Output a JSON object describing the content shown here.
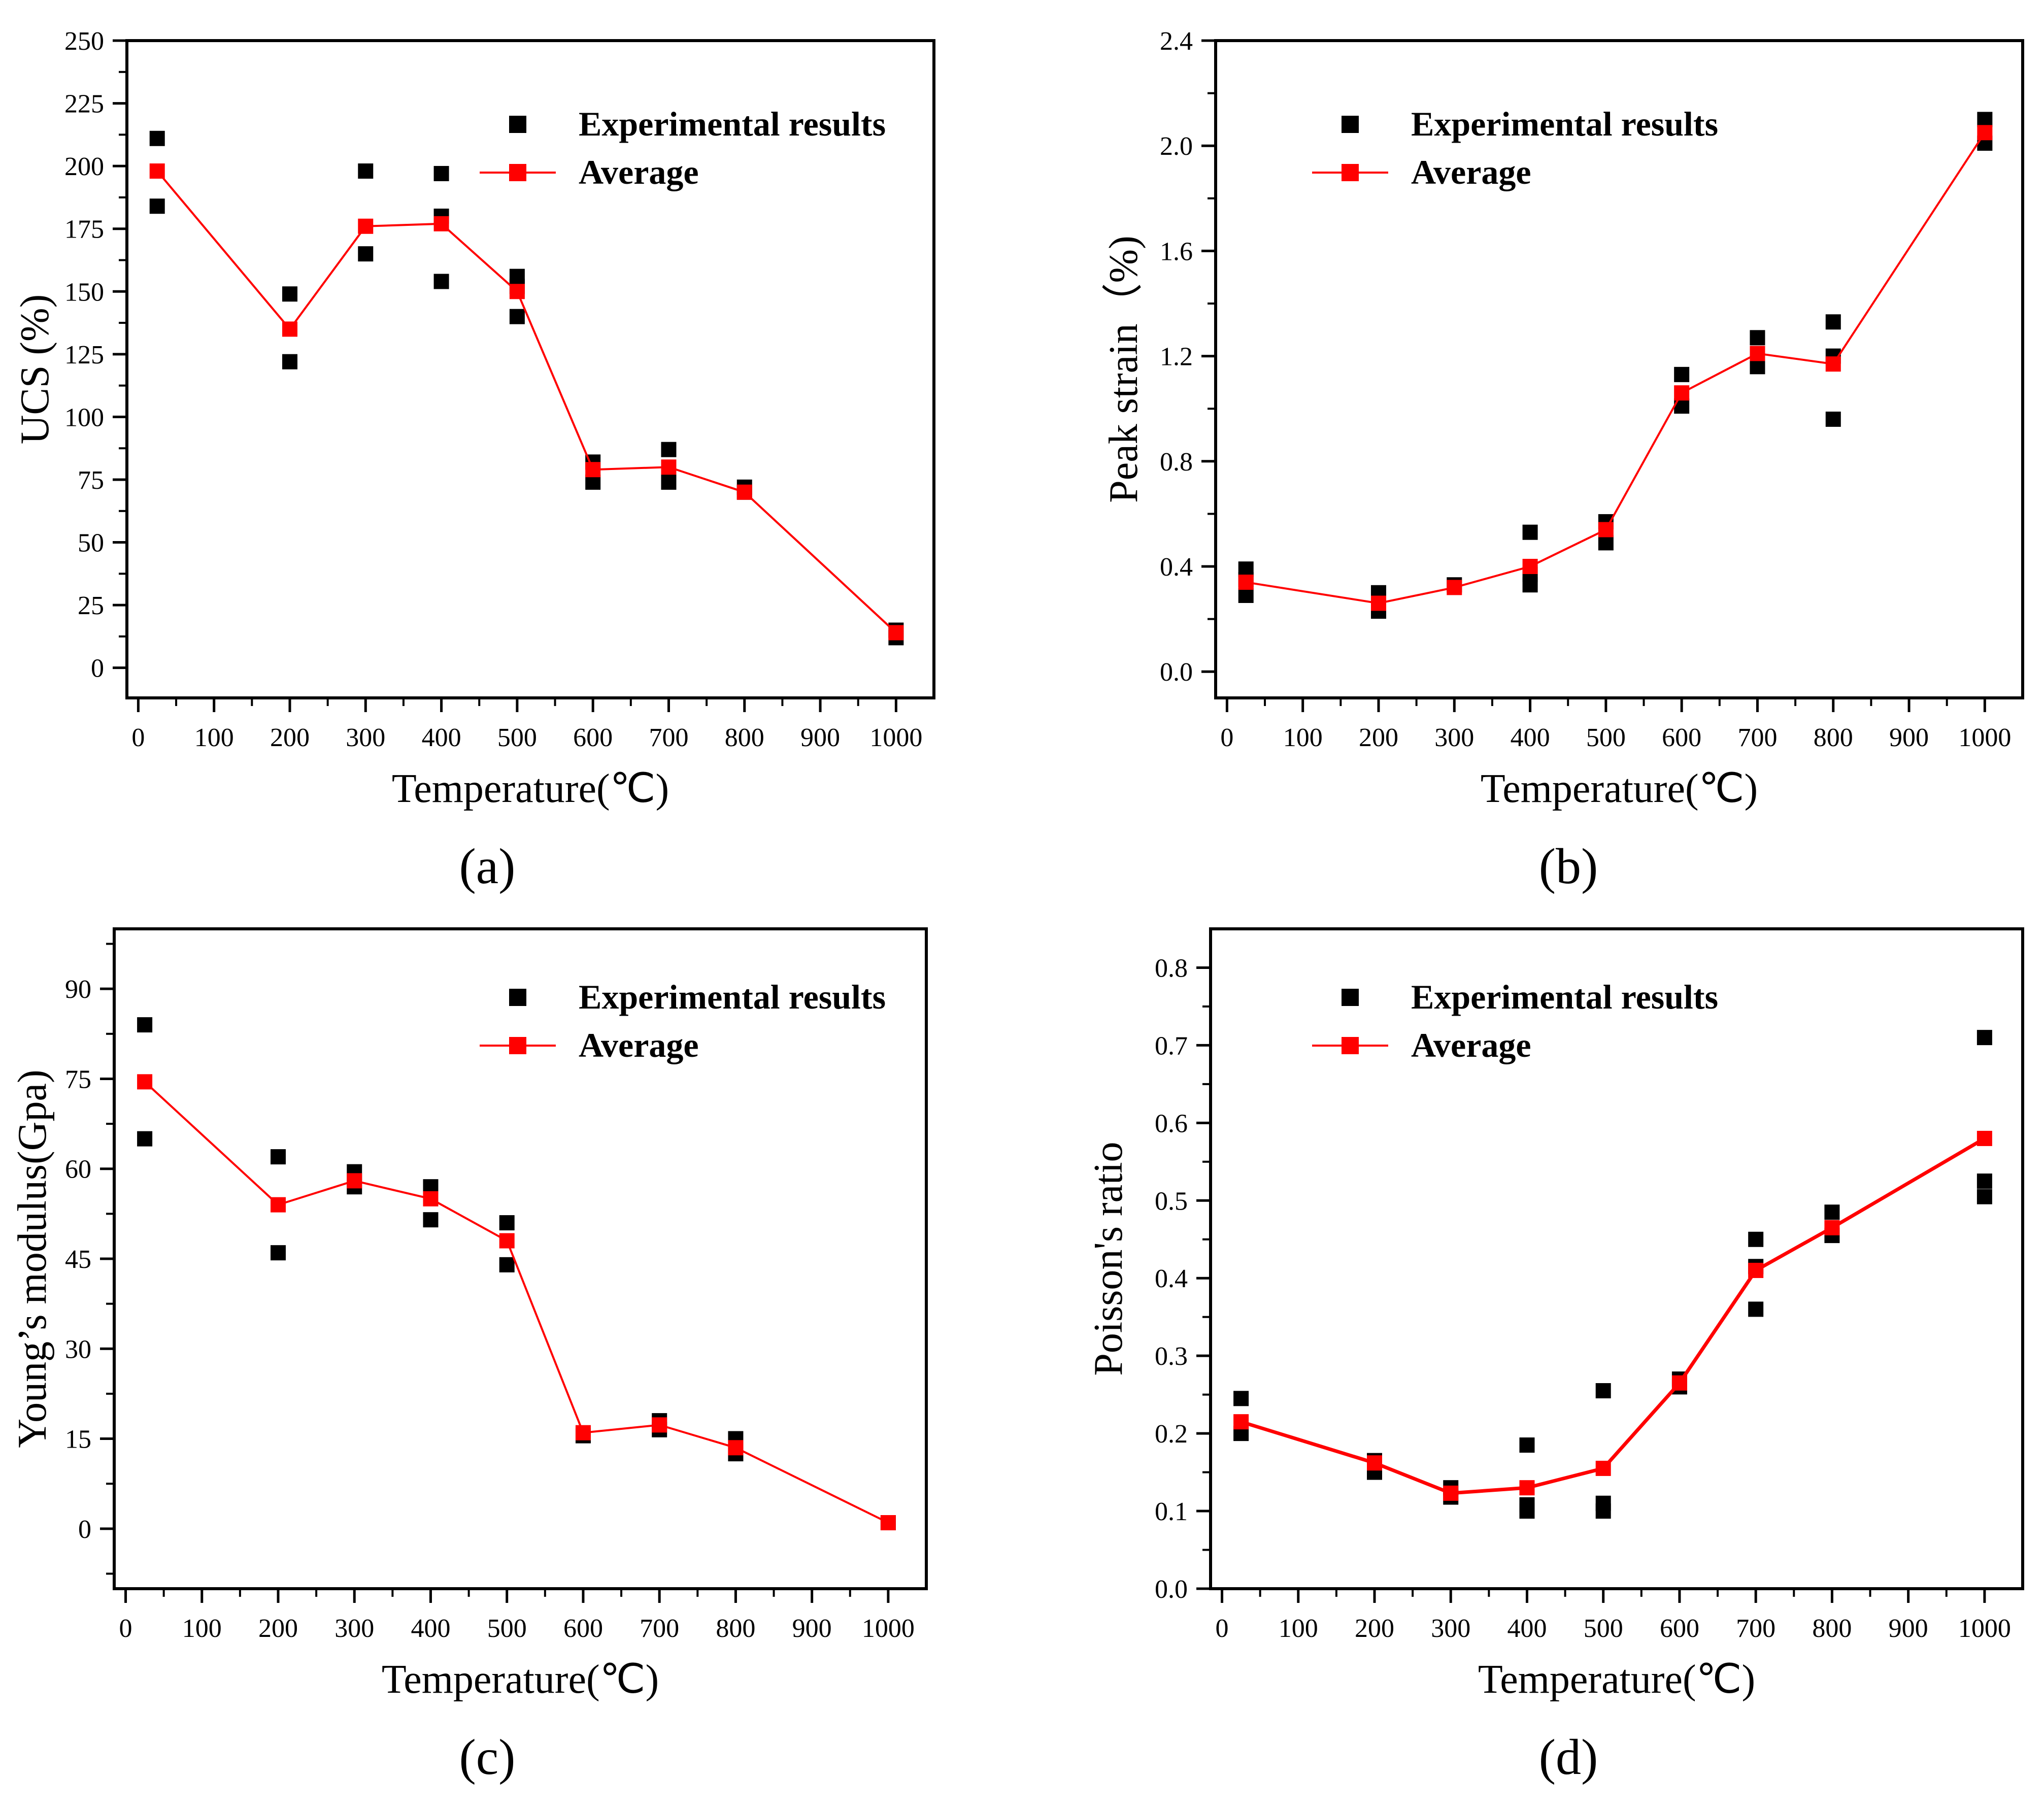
{
  "legend": {
    "experimental": "Experimental results",
    "average": "Average"
  },
  "colors": {
    "experimental": "#000000",
    "average": "#ff0000",
    "axis": "#000000"
  },
  "chart_data": [
    {
      "type": "scatter",
      "panel": "(a)",
      "xlabel": "Temperature(℃)",
      "ylabel": "UCS (%)",
      "xlim": [
        -15,
        1050
      ],
      "ylim": [
        -12,
        250
      ],
      "xticks": [
        0,
        100,
        200,
        300,
        400,
        500,
        600,
        700,
        800,
        900,
        1000
      ],
      "yticks": [
        0,
        25,
        50,
        75,
        100,
        125,
        150,
        175,
        200,
        225,
        250
      ],
      "legend_position": "top-right",
      "series": [
        {
          "name": "Experimental results",
          "style": "scatter",
          "x": [
            25,
            25,
            200,
            200,
            300,
            300,
            400,
            400,
            400,
            500,
            500,
            500,
            600,
            600,
            700,
            700,
            800,
            800,
            1000,
            1000
          ],
          "y": [
            211,
            184,
            149,
            122,
            198,
            165,
            197,
            180,
            154,
            156,
            152,
            140,
            82,
            74,
            87,
            74,
            72,
            70,
            15,
            12
          ]
        },
        {
          "name": "Average",
          "style": "line",
          "x": [
            25,
            200,
            300,
            400,
            500,
            600,
            700,
            800,
            1000
          ],
          "y": [
            198,
            135,
            176,
            177,
            150,
            79,
            80,
            70,
            14
          ]
        }
      ]
    },
    {
      "type": "scatter",
      "panel": "(b)",
      "xlabel": "Temperature(℃)",
      "ylabel": "Peak strain（%)",
      "xlim": [
        -15,
        1050
      ],
      "ylim": [
        -0.1,
        2.4
      ],
      "xticks": [
        0,
        100,
        200,
        300,
        400,
        500,
        600,
        700,
        800,
        900,
        1000
      ],
      "yticks": [
        0.0,
        0.4,
        0.8,
        1.2,
        1.6,
        2.0,
        2.4
      ],
      "legend_position": "top-right",
      "series": [
        {
          "name": "Experimental results",
          "style": "scatter",
          "x": [
            25,
            25,
            25,
            200,
            200,
            300,
            400,
            400,
            400,
            500,
            500,
            600,
            600,
            700,
            700,
            800,
            800,
            800,
            1000,
            1000
          ],
          "y": [
            0.39,
            0.35,
            0.29,
            0.3,
            0.23,
            0.33,
            0.53,
            0.37,
            0.33,
            0.57,
            0.49,
            1.13,
            1.01,
            1.27,
            1.16,
            1.33,
            1.2,
            0.96,
            2.1,
            2.01
          ]
        },
        {
          "name": "Average",
          "style": "line",
          "x": [
            25,
            200,
            300,
            400,
            500,
            600,
            700,
            800,
            1000
          ],
          "y": [
            0.34,
            0.26,
            0.32,
            0.4,
            0.54,
            1.06,
            1.21,
            1.17,
            2.05
          ]
        }
      ]
    },
    {
      "type": "scatter",
      "panel": "(c)",
      "xlabel": "Temperature(℃)",
      "ylabel": "Young’s modulus(Gpa)",
      "xlim": [
        -15,
        1050
      ],
      "ylim": [
        -10,
        100
      ],
      "xticks": [
        0,
        100,
        200,
        300,
        400,
        500,
        600,
        700,
        800,
        900,
        1000
      ],
      "yticks": [
        0,
        15,
        30,
        45,
        60,
        75,
        90
      ],
      "legend_position": "top-right",
      "series": [
        {
          "name": "Experimental results",
          "style": "scatter",
          "x": [
            25,
            25,
            200,
            200,
            300,
            300,
            400,
            400,
            500,
            500,
            600,
            700,
            700,
            800,
            800,
            1000
          ],
          "y": [
            84,
            65,
            62,
            46,
            59.5,
            57,
            57,
            51.5,
            51,
            44,
            15.5,
            18,
            16.5,
            15,
            12.5,
            1
          ],
          "z": [],
          "extra": []
        },
        {
          "name": "Average",
          "style": "line",
          "x": [
            25,
            200,
            300,
            400,
            500,
            600,
            700,
            800,
            1000
          ],
          "y": [
            74.5,
            54,
            58,
            55,
            48,
            16,
            17.3,
            13.5,
            1
          ]
        }
      ]
    },
    {
      "type": "scatter",
      "panel": "(d)",
      "xlabel": "Temperature(℃)",
      "ylabel": "Poisson's ratio",
      "xlim": [
        -15,
        1050
      ],
      "ylim": [
        0.0,
        0.85
      ],
      "xticks": [
        0,
        100,
        200,
        300,
        400,
        500,
        600,
        700,
        800,
        900,
        1000
      ],
      "yticks": [
        0.0,
        0.1,
        0.2,
        0.3,
        0.4,
        0.5,
        0.6,
        0.7,
        0.8
      ],
      "legend_position": "top-right",
      "series": [
        {
          "name": "Experimental results",
          "style": "scatter",
          "x": [
            25,
            25,
            200,
            200,
            300,
            300,
            400,
            400,
            400,
            500,
            500,
            500,
            600,
            600,
            700,
            700,
            700,
            800,
            800,
            1000,
            1000,
            1000
          ],
          "y": [
            0.245,
            0.2,
            0.165,
            0.15,
            0.13,
            0.118,
            0.185,
            0.108,
            0.1,
            0.255,
            0.11,
            0.1,
            0.27,
            0.26,
            0.45,
            0.415,
            0.36,
            0.485,
            0.455,
            0.71,
            0.525,
            0.505
          ]
        },
        {
          "name": "Average",
          "style": "line",
          "x": [
            25,
            200,
            300,
            400,
            500,
            600,
            700,
            800,
            1000
          ],
          "y": [
            0.215,
            0.162,
            0.123,
            0.13,
            0.155,
            0.265,
            0.41,
            0.465,
            0.58
          ]
        }
      ]
    }
  ]
}
